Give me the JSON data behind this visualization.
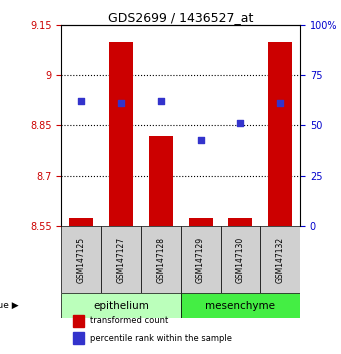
{
  "title": "GDS2699 / 1436527_at",
  "samples": [
    "GSM147125",
    "GSM147127",
    "GSM147128",
    "GSM147129",
    "GSM147130",
    "GSM147132"
  ],
  "bar_values": [
    8.575,
    9.1,
    8.82,
    8.575,
    8.575,
    9.1
  ],
  "bar_bottom": 8.55,
  "dot_percentiles": [
    62,
    61,
    62,
    43,
    51,
    61
  ],
  "ylim_left": [
    8.55,
    9.15
  ],
  "ylim_right": [
    0,
    100
  ],
  "yticks_left": [
    8.55,
    8.7,
    8.85,
    9.0,
    9.15
  ],
  "ytick_labels_left": [
    "8.55",
    "8.7",
    "8.85",
    "9",
    "9.15"
  ],
  "yticks_right": [
    0,
    25,
    50,
    75,
    100
  ],
  "ytick_labels_right": [
    "0",
    "25",
    "50",
    "75",
    "100%"
  ],
  "hlines": [
    9.0,
    8.85,
    8.7
  ],
  "bar_color": "#cc0000",
  "dot_color": "#3333cc",
  "tissue_groups": [
    {
      "label": "epithelium",
      "indices": [
        0,
        1,
        2
      ],
      "color": "#bbffbb"
    },
    {
      "label": "mesenchyme",
      "indices": [
        3,
        4,
        5
      ],
      "color": "#44ee44"
    }
  ],
  "legend_items": [
    {
      "label": "transformed count",
      "color": "#cc0000"
    },
    {
      "label": "percentile rank within the sample",
      "color": "#3333cc"
    }
  ],
  "ylabel_left_color": "#cc0000",
  "ylabel_right_color": "#0000cc",
  "sample_box_color": "#d0d0d0",
  "background_color": "white"
}
